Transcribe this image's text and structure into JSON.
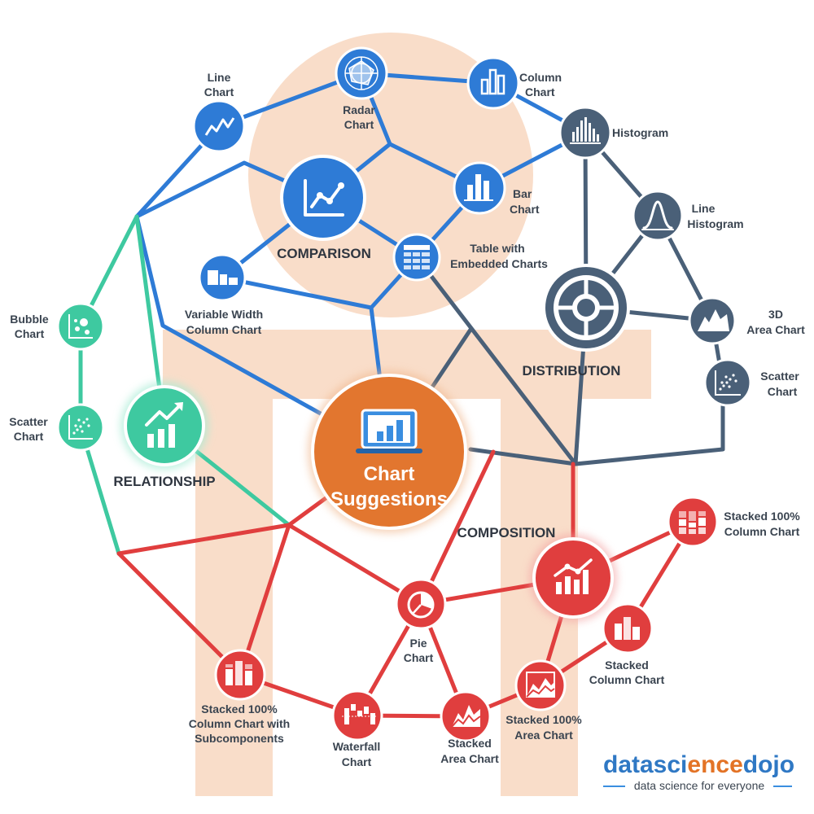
{
  "colors": {
    "comparison": "#2e7bd6",
    "distribution": "#4a6078",
    "relationship": "#3ec9a0",
    "composition": "#e03e3e",
    "center": "#e2762f",
    "background_shape": "#f9ddc9"
  },
  "center": {
    "line1": "Chart",
    "line2": "Suggestions",
    "icon": "laptop-bar-chart-icon"
  },
  "categories": {
    "comparison": "COMPARISON",
    "distribution": "DISTRIBUTION",
    "relationship": "RELATIONSHIP",
    "composition": "COMPOSITION"
  },
  "nodes": {
    "line_chart": [
      "Line",
      "Chart"
    ],
    "radar_chart": [
      "Radar",
      "Chart"
    ],
    "column_chart": [
      "Column",
      "Chart"
    ],
    "histogram": [
      "Histogram"
    ],
    "bar_chart": [
      "Bar",
      "Chart"
    ],
    "line_histogram": [
      "Line",
      "Histogram"
    ],
    "table_embedded": [
      "Table with",
      "Embedded Charts"
    ],
    "variable_width": [
      "Variable Width",
      "Column Chart"
    ],
    "area_3d": [
      "3D",
      "Area Chart"
    ],
    "scatter_right": [
      "Scatter",
      "Chart"
    ],
    "bubble_chart": [
      "Bubble",
      "Chart"
    ],
    "scatter_left": [
      "Scatter",
      "Chart"
    ],
    "stacked100_col": [
      "Stacked 100%",
      "Column Chart"
    ],
    "stacked_col": [
      "Stacked",
      "Column Chart"
    ],
    "pie_chart": [
      "Pie",
      "Chart"
    ],
    "stacked100_sub": [
      "Stacked 100%",
      "Column Chart with",
      "Subcomponents"
    ],
    "waterfall": [
      "Waterfall",
      "Chart"
    ],
    "stacked_area": [
      "Stacked",
      "Area Chart"
    ],
    "stacked100_area": [
      "Stacked 100%",
      "Area Chart"
    ]
  },
  "logo": {
    "part1": "datasci",
    "part2": "ence",
    "part3": "dojo",
    "tagline": "data science for everyone"
  }
}
